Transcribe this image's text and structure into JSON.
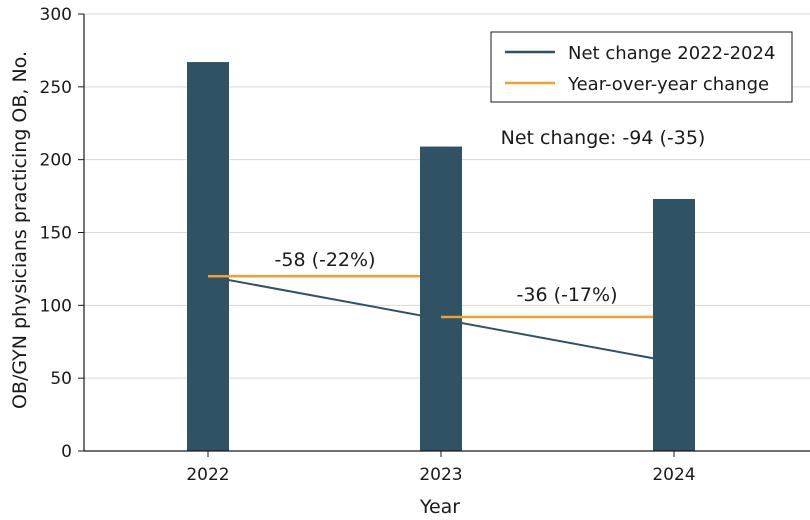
{
  "chart_data": {
    "type": "bar",
    "title": "",
    "xlabel": "Year",
    "ylabel": "OB/GYN physicians practicing OB, No.",
    "categories": [
      "2022",
      "2023",
      "2024"
    ],
    "values": [
      267,
      209,
      173
    ],
    "ylim": [
      0,
      300
    ],
    "yticks": [
      0,
      50,
      100,
      150,
      200,
      250,
      300
    ],
    "grid": true,
    "net_change_line": {
      "name": "Net change 2022-2024",
      "points": [
        {
          "x": "2022",
          "y": 120
        },
        {
          "x": "2024",
          "y": 61
        }
      ]
    },
    "yoy_segments": [
      {
        "from": "2022",
        "to": "2023",
        "y": 120,
        "label": "-58 (-22%)"
      },
      {
        "from": "2023",
        "to": "2024",
        "y": 92,
        "label": "-36 (-17%)"
      }
    ],
    "net_change_annotation": "Net change: -94 (-35)",
    "legend": {
      "position": "top-right",
      "entries": [
        {
          "label": "Net change 2022-2024",
          "color": "#2f5264"
        },
        {
          "label": "Year-over-year change",
          "color": "#f0a030"
        }
      ]
    },
    "colors": {
      "bar": "#2f5264",
      "net_line": "#2f5264",
      "yoy_line": "#f0a030"
    }
  }
}
